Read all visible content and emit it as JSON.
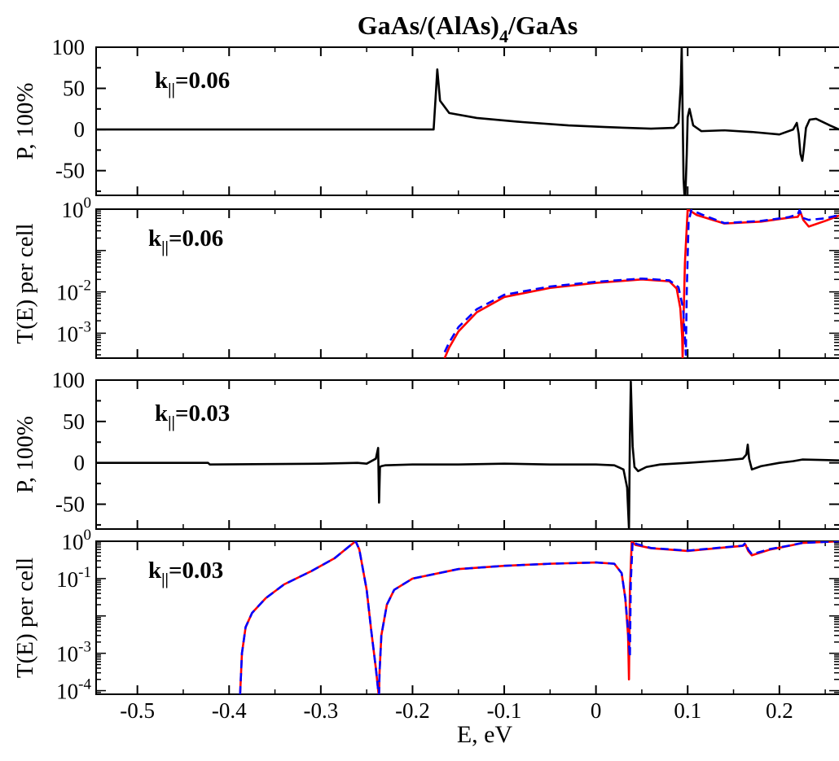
{
  "figure": {
    "title_main": "GaAs/(AlAs)",
    "title_sub": "4",
    "title_end": "/GaAs",
    "xlabel": "E, eV"
  },
  "chart_data": [
    {
      "type": "line",
      "annotation_k": "k",
      "annotation_sub": "||",
      "annotation_value": "=0.06",
      "ylabel": "P, 100%",
      "xlim": [
        -0.545,
        0.265
      ],
      "ylim": [
        -80,
        100
      ],
      "yscale": "linear",
      "yticks": [
        100,
        50,
        0,
        -50
      ],
      "ytick_labels": [
        "100",
        "50",
        "0",
        "-50"
      ],
      "series": [
        {
          "color": "#000000",
          "dash": "none",
          "x": [
            -0.545,
            -0.276,
            -0.274,
            -0.177,
            -0.1745,
            -0.173,
            -0.17,
            -0.16,
            -0.13,
            -0.08,
            -0.03,
            0.01,
            0.06,
            0.085,
            0.09,
            0.0925,
            0.0935,
            0.0945,
            0.0955,
            0.0965,
            0.0975,
            0.099,
            0.1,
            0.102,
            0.106,
            0.115,
            0.14,
            0.17,
            0.2,
            0.215,
            0.219,
            0.221,
            0.223,
            0.225,
            0.2265,
            0.229,
            0.233,
            0.24,
            0.255,
            0.265
          ],
          "y": [
            0,
            0,
            0,
            0,
            45,
            73,
            35,
            20,
            14,
            9,
            5,
            3,
            1,
            2,
            8,
            55,
            100,
            20,
            -60,
            -80,
            -80,
            -30,
            15,
            25,
            5,
            -2,
            -1,
            -3,
            -6,
            0,
            8,
            -5,
            -30,
            -38,
            -25,
            2,
            12,
            13,
            5,
            0
          ]
        }
      ]
    },
    {
      "type": "line",
      "annotation_k": "k",
      "annotation_sub": "||",
      "annotation_value": "=0.06",
      "ylabel": "T(E) per cell",
      "xlim": [
        -0.545,
        0.265
      ],
      "ylim": [
        0.00025,
        1
      ],
      "yscale": "log",
      "yticks": [
        1,
        0.01,
        0.001
      ],
      "ytick_base": [
        "10",
        "10",
        "10"
      ],
      "ytick_exp": [
        "0",
        "-2",
        "-3"
      ],
      "series": [
        {
          "color": "#ff0000",
          "dash": "none",
          "x": [
            -0.165,
            -0.16,
            -0.15,
            -0.13,
            -0.1,
            -0.05,
            0.0,
            0.05,
            0.08,
            0.088,
            0.092,
            0.094,
            0.0945,
            0.095,
            0.097,
            0.1,
            0.11,
            0.14,
            0.18,
            0.21,
            0.22,
            0.223,
            0.226,
            0.232,
            0.25,
            0.265
          ],
          "y": [
            0.00025,
            0.00045,
            0.0011,
            0.0032,
            0.0075,
            0.0125,
            0.0165,
            0.02,
            0.018,
            0.012,
            0.004,
            0.0008,
            0.00025,
            0.0008,
            0.05,
            1,
            0.72,
            0.45,
            0.5,
            0.62,
            0.65,
            0.85,
            0.55,
            0.38,
            0.52,
            0.7
          ]
        },
        {
          "color": "#0000ff",
          "dash": "10,6",
          "x": [
            -0.165,
            -0.16,
            -0.15,
            -0.13,
            -0.1,
            -0.05,
            0.0,
            0.05,
            0.08,
            0.09,
            0.095,
            0.097,
            0.098,
            0.099,
            0.101,
            0.104,
            0.115,
            0.14,
            0.18,
            0.21,
            0.22,
            0.222,
            0.225,
            0.232,
            0.25,
            0.265
          ],
          "y": [
            0.00035,
            0.0006,
            0.0014,
            0.0038,
            0.0085,
            0.0135,
            0.0175,
            0.021,
            0.019,
            0.013,
            0.004,
            0.0008,
            0.0003,
            0.01,
            0.5,
            0.95,
            0.75,
            0.46,
            0.52,
            0.64,
            0.75,
            0.95,
            0.62,
            0.55,
            0.6,
            0.72
          ]
        }
      ]
    },
    {
      "type": "line",
      "annotation_k": "k",
      "annotation_sub": "||",
      "annotation_value": "=0.03",
      "ylabel": "P, 100%",
      "xlim": [
        -0.545,
        0.265
      ],
      "ylim": [
        -80,
        100
      ],
      "yscale": "linear",
      "yticks": [
        100,
        50,
        0,
        -50
      ],
      "ytick_labels": [
        "100",
        "50",
        "0",
        "-50"
      ],
      "series": [
        {
          "color": "#000000",
          "dash": "none",
          "x": [
            -0.545,
            -0.423,
            -0.421,
            -0.3,
            -0.26,
            -0.25,
            -0.24,
            -0.2375,
            -0.2365,
            -0.2355,
            -0.234,
            -0.23,
            -0.2,
            -0.15,
            -0.1,
            -0.05,
            0.0,
            0.02,
            0.03,
            0.034,
            0.036,
            0.037,
            0.038,
            0.04,
            0.042,
            0.046,
            0.055,
            0.07,
            0.1,
            0.14,
            0.16,
            0.164,
            0.1655,
            0.167,
            0.17,
            0.18,
            0.2,
            0.215,
            0.225,
            0.265
          ],
          "y": [
            0,
            0,
            -2,
            -1,
            0,
            -1,
            5,
            18,
            -48,
            -5,
            -4,
            -3,
            -2,
            -2,
            -1,
            -2,
            -2,
            -3,
            -8,
            -30,
            -80,
            30,
            98,
            20,
            -5,
            -10,
            -5,
            -2,
            0,
            3,
            5,
            10,
            22,
            5,
            -8,
            -4,
            0,
            2,
            4,
            3
          ]
        }
      ]
    },
    {
      "type": "line",
      "annotation_k": "k",
      "annotation_sub": "||",
      "annotation_value": "=0.03",
      "ylabel": "T(E) per cell",
      "xlim": [
        -0.545,
        0.265
      ],
      "ylim": [
        8e-05,
        1
      ],
      "yscale": "log",
      "yticks": [
        1,
        0.1,
        0.001,
        0.0001
      ],
      "ytick_base": [
        "10",
        "10",
        "10",
        "10"
      ],
      "ytick_exp": [
        "0",
        "-1",
        "-3",
        "-4"
      ],
      "series": [
        {
          "color": "#ff0000",
          "dash": "none",
          "x": [
            -0.388,
            -0.386,
            -0.382,
            -0.375,
            -0.36,
            -0.34,
            -0.31,
            -0.285,
            -0.27,
            -0.262,
            -0.258,
            -0.25,
            -0.245,
            -0.24,
            -0.237,
            -0.2365,
            -0.236,
            -0.234,
            -0.228,
            -0.22,
            -0.2,
            -0.15,
            -0.1,
            -0.05,
            0.0,
            0.02,
            0.028,
            0.032,
            0.035,
            0.036,
            0.037,
            0.039,
            0.043,
            0.06,
            0.1,
            0.14,
            0.16,
            0.163,
            0.166,
            0.17,
            0.19,
            0.21,
            0.225,
            0.265
          ],
          "y": [
            8e-05,
            0.001,
            0.005,
            0.012,
            0.03,
            0.07,
            0.16,
            0.35,
            0.7,
            1,
            0.6,
            0.05,
            0.004,
            0.0004,
            8e-05,
            8e-05,
            0.0003,
            0.003,
            0.02,
            0.05,
            0.1,
            0.18,
            0.22,
            0.25,
            0.27,
            0.25,
            0.14,
            0.03,
            0.003,
            0.0002,
            0.05,
            1,
            0.8,
            0.65,
            0.55,
            0.68,
            0.75,
            0.82,
            0.55,
            0.42,
            0.6,
            0.75,
            0.9,
            1
          ]
        },
        {
          "color": "#0000ff",
          "dash": "10,6",
          "x": [
            -0.388,
            -0.386,
            -0.382,
            -0.375,
            -0.36,
            -0.34,
            -0.31,
            -0.285,
            -0.27,
            -0.262,
            -0.258,
            -0.25,
            -0.245,
            -0.24,
            -0.237,
            -0.2365,
            -0.236,
            -0.234,
            -0.228,
            -0.22,
            -0.2,
            -0.15,
            -0.1,
            -0.05,
            0.0,
            0.02,
            0.028,
            0.032,
            0.035,
            0.037,
            0.038,
            0.04,
            0.044,
            0.06,
            0.1,
            0.14,
            0.16,
            0.163,
            0.166,
            0.17,
            0.19,
            0.21,
            0.225,
            0.265
          ],
          "y": [
            8e-05,
            0.001,
            0.005,
            0.012,
            0.03,
            0.07,
            0.16,
            0.35,
            0.7,
            1,
            0.6,
            0.05,
            0.004,
            0.0004,
            8e-05,
            8e-05,
            0.0003,
            0.003,
            0.02,
            0.05,
            0.1,
            0.18,
            0.22,
            0.25,
            0.27,
            0.25,
            0.14,
            0.03,
            0.004,
            0.0008,
            0.08,
            1,
            0.85,
            0.66,
            0.56,
            0.69,
            0.76,
            0.9,
            0.6,
            0.45,
            0.62,
            0.76,
            0.9,
            1
          ]
        }
      ]
    }
  ]
}
